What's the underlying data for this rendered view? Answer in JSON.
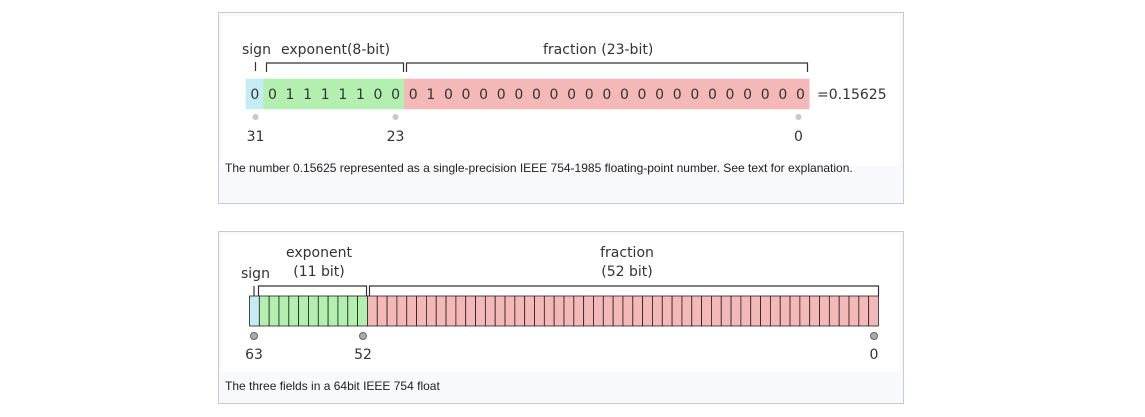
{
  "single": {
    "labels": {
      "sign": "sign",
      "exponent": "exponent(8-bit)",
      "fraction": "fraction (23-bit)"
    },
    "bits": [
      "0",
      "0",
      "1",
      "1",
      "1",
      "1",
      "1",
      "0",
      "0",
      "0",
      "1",
      "0",
      "0",
      "0",
      "0",
      "0",
      "0",
      "0",
      "0",
      "0",
      "0",
      "0",
      "0",
      "0",
      "0",
      "0",
      "0",
      "0",
      "0",
      "0",
      "0",
      "0"
    ],
    "result": "=0.15625",
    "positions": [
      "31",
      "23",
      "0"
    ],
    "caption": "The number 0.15625 represented as a single-precision IEEE 754-1985 floating-point number. See text for explanation.",
    "colors": {
      "sign": "#c5ecf5",
      "exponent": "#b3f0b0",
      "fraction": "#f5b8b8"
    }
  },
  "double": {
    "labels": {
      "sign": "sign",
      "exponent_line1": "exponent",
      "exponent_line2": "(11 bit)",
      "fraction_line1": "fraction",
      "fraction_line2": "(52 bit)"
    },
    "bit_counts": {
      "sign": 1,
      "exponent": 11,
      "fraction": 52
    },
    "positions": [
      "63",
      "52",
      "0"
    ],
    "caption": "The three fields in a 64bit IEEE 754 float",
    "colors": {
      "sign": "#c5ecf5",
      "exponent": "#b3f0b0",
      "fraction": "#f5b8b8"
    }
  }
}
